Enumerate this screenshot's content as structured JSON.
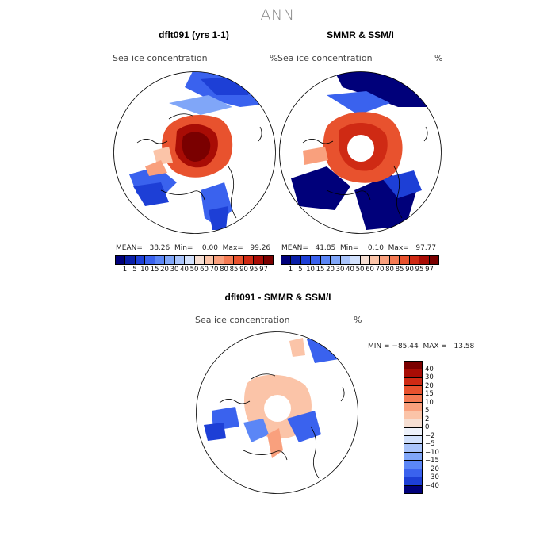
{
  "title": "ANN",
  "panels": {
    "model": {
      "title": "dflt091 (yrs 1-1)",
      "field": "Sea ice concentration",
      "units": "%",
      "stats": "MEAN=   38.26  Min=    0.00  Max=   99.26"
    },
    "obs": {
      "title": "SMMR & SSM/I",
      "field": "Sea ice concentration",
      "units": "%",
      "stats": "MEAN=   41.85  Min=    0.10  Max=   97.77"
    },
    "diff": {
      "title": "dflt091 - SMMR & SSM/I",
      "field": "Sea ice concentration",
      "units": "%",
      "minmax": "MIN = −85.44  MAX =   13.58"
    }
  },
  "colorbar_abs": {
    "labels": [
      "1",
      "5",
      "10",
      "15",
      "20",
      "30",
      "40",
      "50",
      "60",
      "70",
      "80",
      "85",
      "90",
      "95",
      "97"
    ],
    "colors": [
      "#00007a",
      "#0a1fa8",
      "#1d3fd6",
      "#3a62ee",
      "#5b86f6",
      "#80a6f8",
      "#a9c4fb",
      "#d2e1fc",
      "#f6dfd3",
      "#fbc4a8",
      "#f9a07d",
      "#f47a53",
      "#e8522e",
      "#cf2a14",
      "#a80c05",
      "#7a0000"
    ]
  },
  "colorbar_diff": {
    "labels": [
      "40",
      "30",
      "20",
      "15",
      "10",
      "5",
      "2",
      "0",
      "−2",
      "−5",
      "−10",
      "−15",
      "−20",
      "−30",
      "−40"
    ],
    "colors": [
      "#7a0000",
      "#a80c05",
      "#cf2a14",
      "#e8522e",
      "#f47a53",
      "#f9a07d",
      "#fbc4a8",
      "#f6dfd3",
      "#eef2fb",
      "#d2e1fc",
      "#a9c4fb",
      "#80a6f8",
      "#5b86f6",
      "#3a62ee",
      "#1d3fd6",
      "#00007a"
    ]
  }
}
